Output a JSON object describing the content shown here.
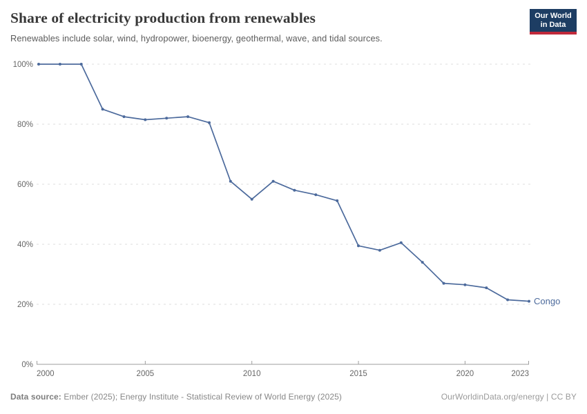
{
  "header": {
    "title": "Share of electricity production from renewables",
    "subtitle": "Renewables include solar, wind, hydropower, bioenergy, geothermal, wave, and tidal sources.",
    "logo": {
      "line1": "Our World",
      "line2": "in Data"
    }
  },
  "chart_data": {
    "type": "line",
    "title": "Share of electricity production from renewables",
    "x": [
      2000,
      2001,
      2002,
      2003,
      2004,
      2005,
      2006,
      2007,
      2008,
      2009,
      2010,
      2011,
      2012,
      2013,
      2014,
      2015,
      2016,
      2017,
      2018,
      2019,
      2020,
      2021,
      2022,
      2023
    ],
    "series": [
      {
        "name": "Congo",
        "values": [
          100,
          100,
          100,
          85,
          82.5,
          81.5,
          82,
          82.5,
          80.5,
          61,
          55,
          61,
          58,
          56.5,
          54.5,
          39.5,
          38,
          40.5,
          34,
          27,
          26.5,
          25.5,
          21.5,
          21
        ],
        "color": "#4C6A9C"
      }
    ],
    "xlabel": "",
    "ylabel": "",
    "ylim": [
      0,
      100
    ],
    "yticks": [
      0,
      20,
      40,
      60,
      80,
      100
    ],
    "ytick_suffix": "%",
    "xticks": [
      2000,
      2005,
      2010,
      2015,
      2020,
      2023
    ],
    "grid": "horizontal-dashed",
    "legend_position": "end-of-line-label"
  },
  "footer": {
    "source_label": "Data source:",
    "source_text": " Ember (2025); Energy Institute - Statistical Review of World Energy (2025)",
    "rights": "OurWorldinData.org/energy | CC BY"
  },
  "colors": {
    "line": "#4C6A9C",
    "gridline": "#dcdcdc",
    "axis": "#9e9e9e",
    "tick_label": "#666666",
    "title": "#383838",
    "subtitle": "#5b5b5b",
    "logo_bg": "#1d3d63",
    "logo_stripe": "#c0293b"
  }
}
